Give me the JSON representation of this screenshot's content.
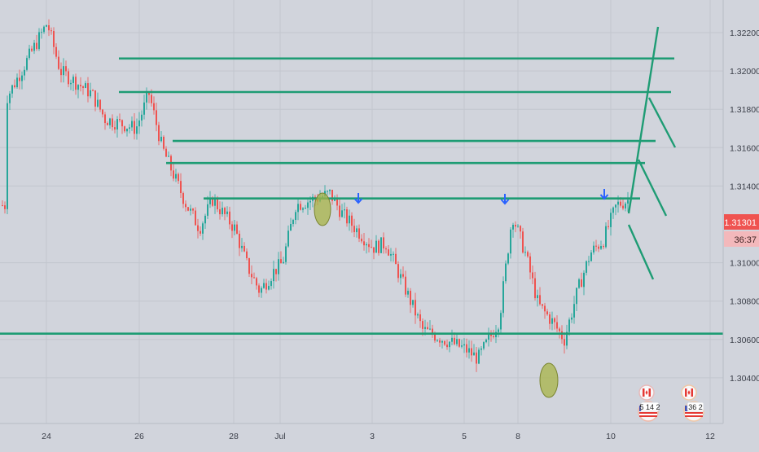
{
  "chart": {
    "background": "#d1d4dc",
    "grid_color": "#c2c6ce",
    "up_color": "#26a69a",
    "down_color": "#ef5350",
    "level_line_color": "#1e9c74",
    "projection_color": "#1e9c74",
    "arrow_color": "#2962ff",
    "highlight_color": "#a7b447"
  },
  "price_axis": {
    "ticks": [
      "1.32200",
      "1.32000",
      "1.31800",
      "1.31600",
      "1.31400",
      "1.31000",
      "1.30800",
      "1.30600",
      "1.30400"
    ],
    "current_price": "1.31301",
    "countdown": "36:37"
  },
  "time_axis": {
    "ticks": [
      "24",
      "26",
      "28",
      "Jul",
      "3",
      "5",
      "8",
      "10",
      "12"
    ]
  },
  "event_badges": [
    {
      "flag_top": "canada-flag",
      "flag_bottom": "usa-flag",
      "label": "5 14 2"
    },
    {
      "flag_top": "canada-flag",
      "flag_bottom": "usa-flag",
      "label": "36 2"
    }
  ],
  "chart_data": {
    "type": "candlestick",
    "x_axis": "date",
    "y_axis": "price",
    "ylim": [
      1.3035,
      1.3245
    ],
    "grid": true,
    "levels": [
      1.32065,
      1.3189,
      1.31635,
      1.3152,
      1.31335,
      1.3063
    ],
    "close_path": [
      {
        "x": "Jun 23",
        "y": 1.3185
      },
      {
        "x": "Jun 24",
        "y": 1.3225
      },
      {
        "x": "Jun 24",
        "y": 1.32
      },
      {
        "x": "Jun 25",
        "y": 1.3188
      },
      {
        "x": "Jun 25",
        "y": 1.3175
      },
      {
        "x": "Jun 26",
        "y": 1.317
      },
      {
        "x": "Jun 26",
        "y": 1.3188
      },
      {
        "x": "Jun 26",
        "y": 1.316
      },
      {
        "x": "Jun 27",
        "y": 1.313
      },
      {
        "x": "Jun 27",
        "y": 1.3118
      },
      {
        "x": "Jun 27",
        "y": 1.3133
      },
      {
        "x": "Jun 28",
        "y": 1.3118
      },
      {
        "x": "Jun 28",
        "y": 1.3098
      },
      {
        "x": "Jun 29",
        "y": 1.3085
      },
      {
        "x": "Jun 29",
        "y": 1.3095
      },
      {
        "x": "Jul 1",
        "y": 1.31
      },
      {
        "x": "Jul 1",
        "y": 1.313
      },
      {
        "x": "Jul 2",
        "y": 1.3136
      },
      {
        "x": "Jul 2",
        "y": 1.3125
      },
      {
        "x": "Jul 3",
        "y": 1.3108
      },
      {
        "x": "Jul 3",
        "y": 1.311
      },
      {
        "x": "Jul 4",
        "y": 1.3065
      },
      {
        "x": "Jul 4",
        "y": 1.3062
      },
      {
        "x": "Jul 5",
        "y": 1.3055
      },
      {
        "x": "Jul 5",
        "y": 1.305
      },
      {
        "x": "Jul 5",
        "y": 1.3062
      },
      {
        "x": "Jul 7",
        "y": 1.307
      },
      {
        "x": "Jul 7",
        "y": 1.3125
      },
      {
        "x": "Jul 7",
        "y": 1.3105
      },
      {
        "x": "Jul 8",
        "y": 1.3078
      },
      {
        "x": "Jul 8",
        "y": 1.307
      },
      {
        "x": "Jul 8",
        "y": 1.306
      },
      {
        "x": "Jul 8",
        "y": 1.3085
      },
      {
        "x": "Jul 9",
        "y": 1.3105
      },
      {
        "x": "Jul 9",
        "y": 1.3112
      },
      {
        "x": "Jul 9",
        "y": 1.313
      },
      {
        "x": "Jul 10",
        "y": 1.3133
      },
      {
        "x": "Jul 10",
        "y": 1.313
      }
    ],
    "markers": [
      {
        "type": "arrow-down",
        "x": "Jul 2",
        "y": 1.3138
      },
      {
        "type": "arrow-down",
        "x": "Jul 7",
        "y": 1.3138
      },
      {
        "type": "arrow-down",
        "x": "Jul 9",
        "y": 1.314
      },
      {
        "type": "ellipse",
        "x": "Jul 1",
        "y": 1.3135
      },
      {
        "type": "ellipse",
        "x": "Jul 8",
        "y": 1.306
      }
    ]
  }
}
